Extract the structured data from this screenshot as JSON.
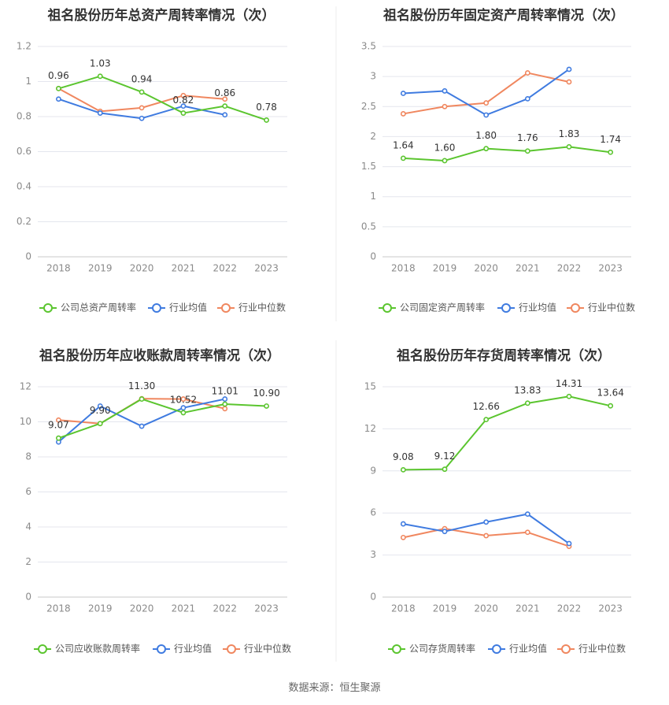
{
  "source": "数据来源：恒生聚源",
  "colors": {
    "company": "#5bc52f",
    "avg": "#3f7be0",
    "median": "#f0875f",
    "grid": "#e4e6ee",
    "axis_text": "#8a8a8a",
    "title": "#333333"
  },
  "chart_data": [
    {
      "type": "line",
      "title": "祖名股份历年总资产周转率情况（次）",
      "categories": [
        "2018",
        "2019",
        "2020",
        "2021",
        "2022",
        "2023"
      ],
      "ylim": [
        0,
        1.2
      ],
      "yticks": [
        "0",
        "0.2",
        "0.4",
        "0.6",
        "0.8",
        "1",
        "1.2"
      ],
      "grid": true,
      "legend_position": "bottom",
      "series": [
        {
          "name": "公司总资产周转率",
          "values": [
            0.96,
            1.03,
            0.94,
            0.82,
            0.86,
            0.78
          ],
          "labels": [
            "0.96",
            "1.03",
            "0.94",
            "0.82",
            "0.86",
            "0.78"
          ]
        },
        {
          "name": "行业均值",
          "values": [
            0.9,
            0.82,
            0.79,
            0.86,
            0.81,
            null
          ]
        },
        {
          "name": "行业中位数",
          "values": [
            0.96,
            0.83,
            0.85,
            0.92,
            0.9,
            null
          ]
        }
      ]
    },
    {
      "type": "line",
      "title": "祖名股份历年固定资产周转率情况（次）",
      "categories": [
        "2018",
        "2019",
        "2020",
        "2021",
        "2022",
        "2023"
      ],
      "ylim": [
        0,
        3.5
      ],
      "yticks": [
        "0",
        "0.5",
        "1",
        "1.5",
        "2",
        "2.5",
        "3",
        "3.5"
      ],
      "grid": true,
      "legend_position": "bottom",
      "series": [
        {
          "name": "公司固定资产周转率",
          "values": [
            1.64,
            1.6,
            1.8,
            1.76,
            1.83,
            1.74
          ],
          "labels": [
            "1.64",
            "1.60",
            "1.80",
            "1.76",
            "1.83",
            "1.74"
          ]
        },
        {
          "name": "行业均值",
          "values": [
            2.72,
            2.76,
            2.36,
            2.63,
            3.12,
            null
          ]
        },
        {
          "name": "行业中位数",
          "values": [
            2.38,
            2.5,
            2.56,
            3.06,
            2.91,
            null
          ]
        }
      ]
    },
    {
      "type": "line",
      "title": "祖名股份历年应收账款周转率情况（次）",
      "categories": [
        "2018",
        "2019",
        "2020",
        "2021",
        "2022",
        "2023"
      ],
      "ylim": [
        0,
        12
      ],
      "yticks": [
        "0",
        "2",
        "4",
        "6",
        "8",
        "10",
        "12"
      ],
      "grid": true,
      "legend_position": "bottom",
      "series": [
        {
          "name": "公司应收账款周转率",
          "values": [
            9.07,
            9.9,
            11.3,
            10.52,
            11.01,
            10.9
          ],
          "labels": [
            "9.07",
            "9.90",
            "11.30",
            "10.52",
            "11.01",
            "10.90"
          ]
        },
        {
          "name": "行业均值",
          "values": [
            8.85,
            10.9,
            9.75,
            10.8,
            11.3,
            null
          ]
        },
        {
          "name": "行业中位数",
          "values": [
            10.1,
            9.9,
            11.32,
            11.3,
            10.75,
            null
          ]
        }
      ]
    },
    {
      "type": "line",
      "title": "祖名股份历年存货周转率情况（次）",
      "categories": [
        "2018",
        "2019",
        "2020",
        "2021",
        "2022",
        "2023"
      ],
      "ylim": [
        0,
        15
      ],
      "yticks": [
        "0",
        "3",
        "6",
        "9",
        "12",
        "15"
      ],
      "grid": true,
      "legend_position": "bottom",
      "series": [
        {
          "name": "公司存货周转率",
          "values": [
            9.08,
            9.12,
            12.66,
            13.83,
            14.31,
            13.64
          ],
          "labels": [
            "9.08",
            "9.12",
            "12.66",
            "13.83",
            "14.31",
            "13.64"
          ]
        },
        {
          "name": "行业均值",
          "values": [
            5.22,
            4.68,
            5.35,
            5.92,
            3.82,
            null
          ]
        },
        {
          "name": "行业中位数",
          "values": [
            4.25,
            4.88,
            4.38,
            4.62,
            3.62,
            null
          ]
        }
      ]
    }
  ]
}
